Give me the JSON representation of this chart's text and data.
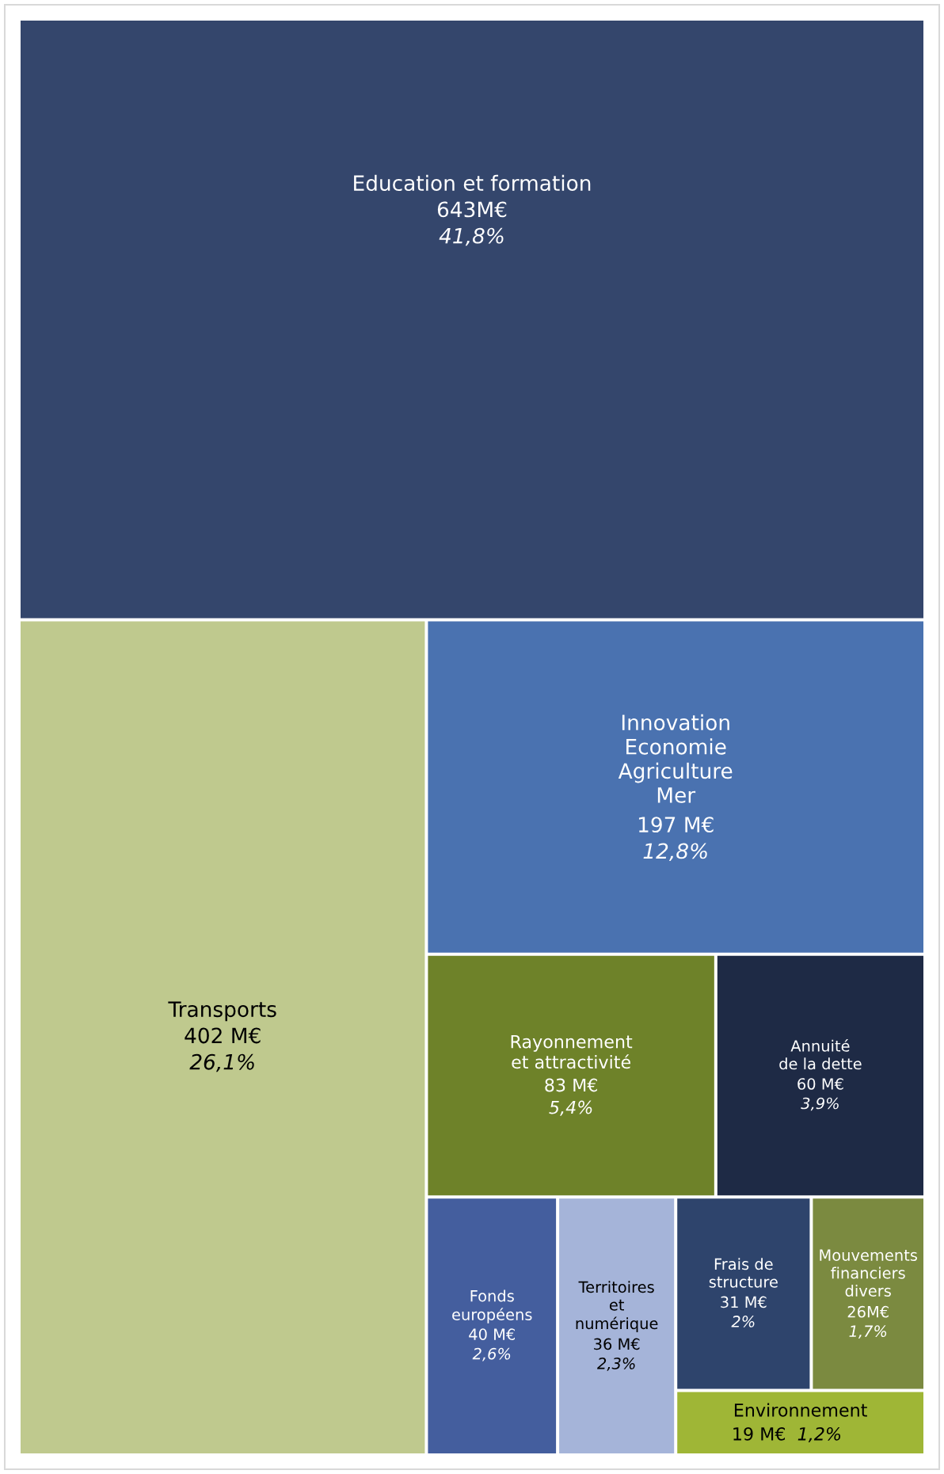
{
  "chart_data": {
    "type": "other",
    "categories": [
      "Education et formation",
      "Transports",
      "Innovation\nEconomie\nAgriculture\nMer",
      "Rayonnement\net attractivité",
      "Annuité\nde la dette",
      "Fonds\neuropéens",
      "Territoires\net\nnumérique",
      "Frais de\nstructure",
      "Mouvements\nfinanciers\ndivers",
      "Environnement"
    ],
    "values": [
      643,
      402,
      197,
      83,
      60,
      40,
      36,
      31,
      26,
      19
    ],
    "value_labels": [
      "643M€",
      "402 M€",
      "197 M€",
      "83 M€",
      "60 M€",
      "40 M€",
      "36 M€",
      "31 M€",
      "26M€",
      "19 M€"
    ],
    "cell_labels": [
      "41,8%",
      "26,1%",
      "12,8%",
      "5,4%",
      "3,9%",
      "2,6%",
      "2,3%",
      "2%",
      "1,7%",
      "1,2%"
    ],
    "colors": [
      "#34466c",
      "#bfc98e",
      "#4a72b0",
      "#6e8229",
      "#1e2a45",
      "#445e9e",
      "#a5b4d9",
      "#2e446c",
      "#7b8a40",
      "#9fb636"
    ]
  }
}
